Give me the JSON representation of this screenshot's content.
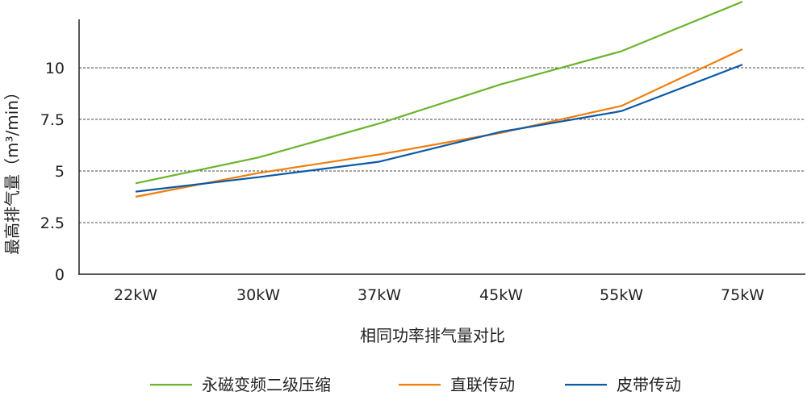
{
  "chart_data": {
    "type": "line",
    "title": "",
    "xlabel": "相同功率排气量对比",
    "ylabel": "最高排气量（m³/min）",
    "categories": [
      "22kW",
      "30kW",
      "37kW",
      "45kW",
      "55kW",
      "75kW"
    ],
    "yticks": [
      "0",
      "2.5",
      "5",
      "7.5",
      "10"
    ],
    "ylim": [
      0,
      13
    ],
    "grid": "horizontal dashed",
    "legend_placement": "bottom",
    "series": [
      {
        "name": "永磁变频二级压缩",
        "color": "#6ab42e",
        "values": [
          4.4,
          5.65,
          7.3,
          9.2,
          10.8,
          13.2
        ]
      },
      {
        "name": "直联传动",
        "color": "#f07e0c",
        "values": [
          3.75,
          4.9,
          5.8,
          6.85,
          8.15,
          10.9
        ]
      },
      {
        "name": "皮带传动",
        "color": "#0d5aa7",
        "values": [
          4.0,
          4.7,
          5.45,
          6.9,
          7.9,
          10.15
        ]
      }
    ]
  }
}
